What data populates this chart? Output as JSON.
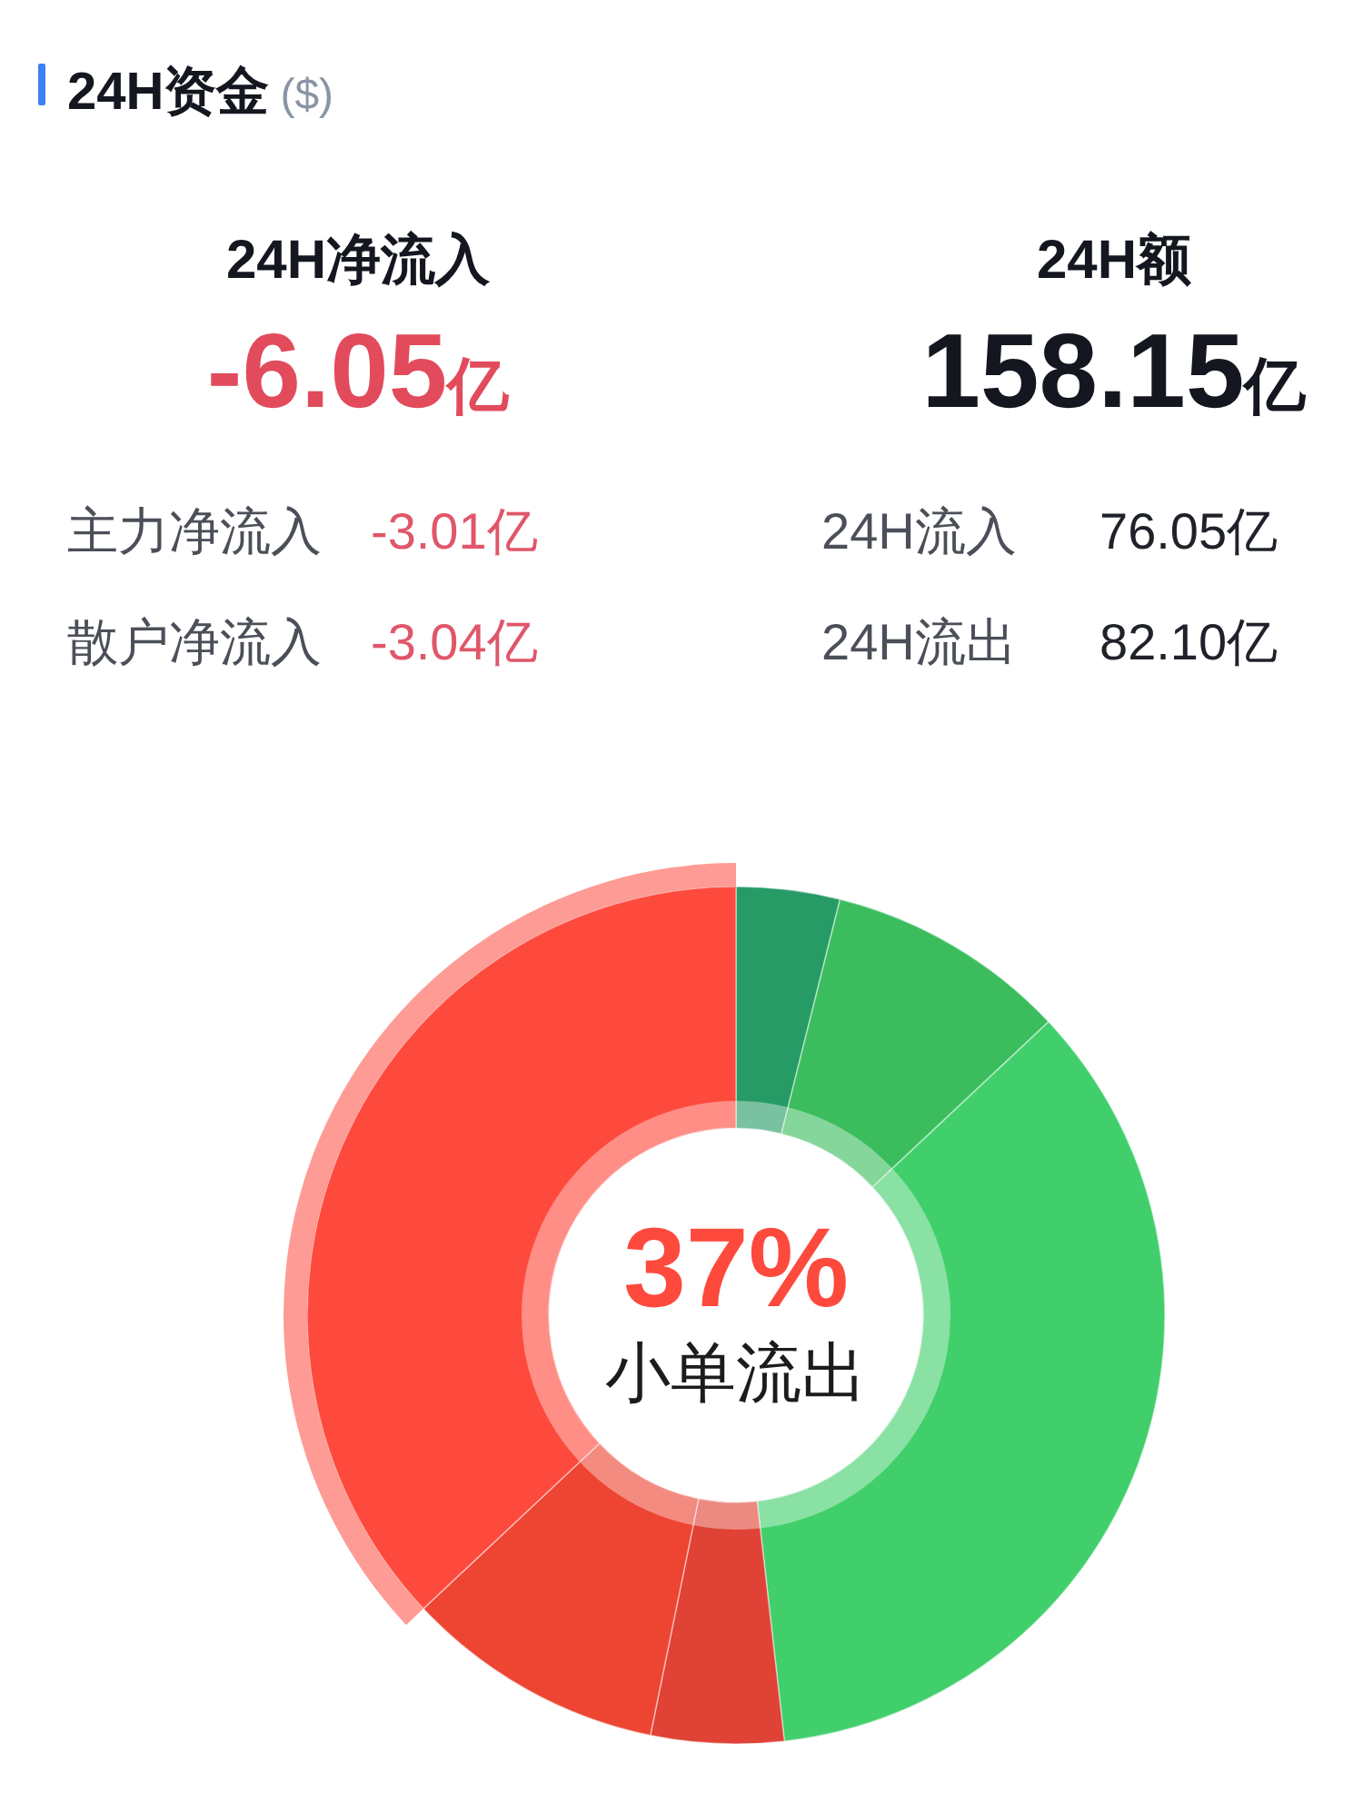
{
  "chart_data": [
    {
      "type": "other",
      "title": "24H资金",
      "subtitle": "($)",
      "annotations": [
        "24H净流入",
        "-6.05亿",
        "24H额",
        "158.15亿",
        "主力净流入",
        "-3.01亿",
        "散户净流入",
        "-3.04亿",
        "24H流入",
        "76.05亿",
        "24H流出",
        "82.10亿"
      ]
    },
    {
      "type": "donut",
      "categories": [
        null,
        null,
        null,
        null,
        null,
        "小单流出"
      ],
      "values": [
        3.9,
        9.1,
        35.2,
        5.0,
        9.8,
        37
      ],
      "colors": [
        "#279b66",
        "#3bbd5e",
        "#41cf6b",
        "#e04235",
        "#ee4432",
        "#fd4a3d"
      ],
      "value_labels": [
        null,
        null,
        null,
        null,
        null,
        "37%"
      ]
    }
  ]
}
